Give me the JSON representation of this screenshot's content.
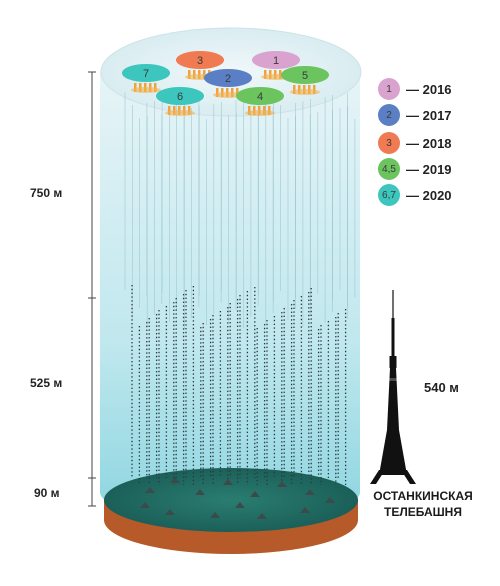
{
  "scale": {
    "top": "750 м",
    "middle": "525 м",
    "bottom": "90 м"
  },
  "tower": {
    "height": "540 м",
    "caption_line1": "ОСТАНКИНСКАЯ",
    "caption_line2": "ТЕЛЕБАШНЯ"
  },
  "legend": [
    {
      "label": "1",
      "year": "— 2016",
      "color": "#d9a2cf"
    },
    {
      "label": "2",
      "year": "— 2017",
      "color": "#5b7fc4"
    },
    {
      "label": "3",
      "year": "— 2018",
      "color": "#f07a52"
    },
    {
      "label": "4,5",
      "year": "— 2019",
      "color": "#6cc45f"
    },
    {
      "label": "6,7",
      "year": "— 2020",
      "color": "#3cc6bd"
    }
  ],
  "disc_labels": [
    "3",
    "1",
    "7",
    "2",
    "5",
    "6",
    "4"
  ],
  "colors": {
    "beam_top": "#dceff3",
    "beam_bottom": "#88d3de",
    "base_top": "#1f6b63",
    "base_side": "#b65a2a",
    "tower": "#111111"
  }
}
